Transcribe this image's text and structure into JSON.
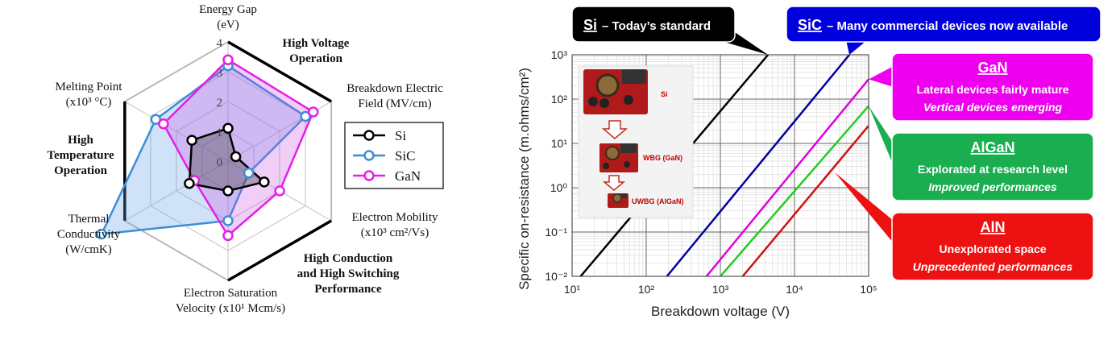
{
  "chart_data": [
    {
      "type": "radar",
      "r_ticks": [
        "0",
        "1",
        "2",
        "3",
        "4"
      ],
      "r_range": [
        0,
        4
      ],
      "axes": [
        {
          "key": "energy_gap",
          "label": [
            "Energy Gap",
            "(eV)"
          ]
        },
        {
          "key": "breakdown_field",
          "label": [
            "Breakdown Electric",
            "Field (MV/cm)"
          ]
        },
        {
          "key": "electron_mobility",
          "label": [
            "Electron Mobility",
            "(x10³ cm²/Vs)"
          ]
        },
        {
          "key": "saturation_velocity",
          "label": [
            "Electron Saturation",
            "Velocity (x10¹ Mcm/s)"
          ]
        },
        {
          "key": "thermal_conductivity",
          "label": [
            "Thermal",
            "Conductivity",
            "(W/cmK)"
          ]
        },
        {
          "key": "melting_point",
          "label": [
            "Melting Point",
            "(x10³ °C)"
          ]
        }
      ],
      "series": [
        {
          "name": "Si",
          "color": "#000000",
          "values": [
            1.1,
            0.3,
            1.4,
            1.0,
            1.5,
            1.4
          ]
        },
        {
          "name": "SiC",
          "color": "#3b8ed6",
          "values": [
            3.2,
            3.0,
            0.8,
            2.0,
            4.9,
            2.8
          ]
        },
        {
          "name": "GaN",
          "color": "#e61ee6",
          "values": [
            3.4,
            3.3,
            2.0,
            2.5,
            1.3,
            2.5
          ]
        }
      ],
      "regions": [
        {
          "key": "high_voltage",
          "lines": [
            "High Voltage",
            "Operation"
          ]
        },
        {
          "key": "high_conduction",
          "lines": [
            "High Conduction",
            "and High Switching",
            "Performance"
          ]
        },
        {
          "key": "high_temperature",
          "lines": [
            "High",
            "Temperature",
            "Operation"
          ]
        }
      ],
      "legend_position": "right"
    },
    {
      "type": "line",
      "x_scale": "log",
      "y_scale": "log",
      "xlabel": "Breakdown voltage (V)",
      "ylabel": "Specific on-resistance (m.ohms/cm²)",
      "x_ticks": [
        "10¹",
        "10²",
        "10³",
        "10⁴",
        "10⁵"
      ],
      "y_ticks": [
        "10⁻²",
        "10⁻¹",
        "10⁰",
        "10¹",
        "10²",
        "10³"
      ],
      "xlim": [
        10,
        100000
      ],
      "ylim": [
        0.01,
        1000
      ],
      "grid": true,
      "series": [
        {
          "name": "Si",
          "color": "#000000",
          "points": [
            [
              13,
              0.01
            ],
            [
              4400,
              1000
            ]
          ]
        },
        {
          "name": "SiC",
          "color": "#0000a0",
          "points": [
            [
              190,
              0.01
            ],
            [
              55000,
              1000
            ]
          ]
        },
        {
          "name": "GaN",
          "color": "#e000e0",
          "points": [
            [
              650,
              0.01
            ],
            [
              100000,
              280
            ]
          ]
        },
        {
          "name": "AlGaN",
          "color": "#22cc22",
          "points": [
            [
              1000,
              0.01
            ],
            [
              100000,
              70
            ]
          ]
        },
        {
          "name": "AlN",
          "color": "#d01010",
          "points": [
            [
              2000,
              0.01
            ],
            [
              100000,
              25
            ]
          ]
        }
      ],
      "inset": {
        "labels": [
          "Si",
          "WBG (GaN)",
          "UWBG (AlGaN)"
        ]
      },
      "callouts": [
        {
          "key": "si",
          "bg": "#000000",
          "title": "Si",
          "line1": "– Today’s standard",
          "line2": ""
        },
        {
          "key": "sic",
          "bg": "#0000dd",
          "title": "SiC",
          "line1": "– Many commercial devices now available",
          "line2": ""
        },
        {
          "key": "gan",
          "bg": "#ee00ee",
          "title": "GaN",
          "line1": "Lateral devices fairly mature",
          "line2": "Vertical devices emerging"
        },
        {
          "key": "algan",
          "bg": "#1aae50",
          "title": "AlGaN",
          "line1": "Explorated at research level",
          "line2": "Improved performances"
        },
        {
          "key": "aln",
          "bg": "#ee1111",
          "title": "AlN",
          "line1": "Unexplorated space",
          "line2": "Unprecedented performances"
        }
      ]
    }
  ]
}
